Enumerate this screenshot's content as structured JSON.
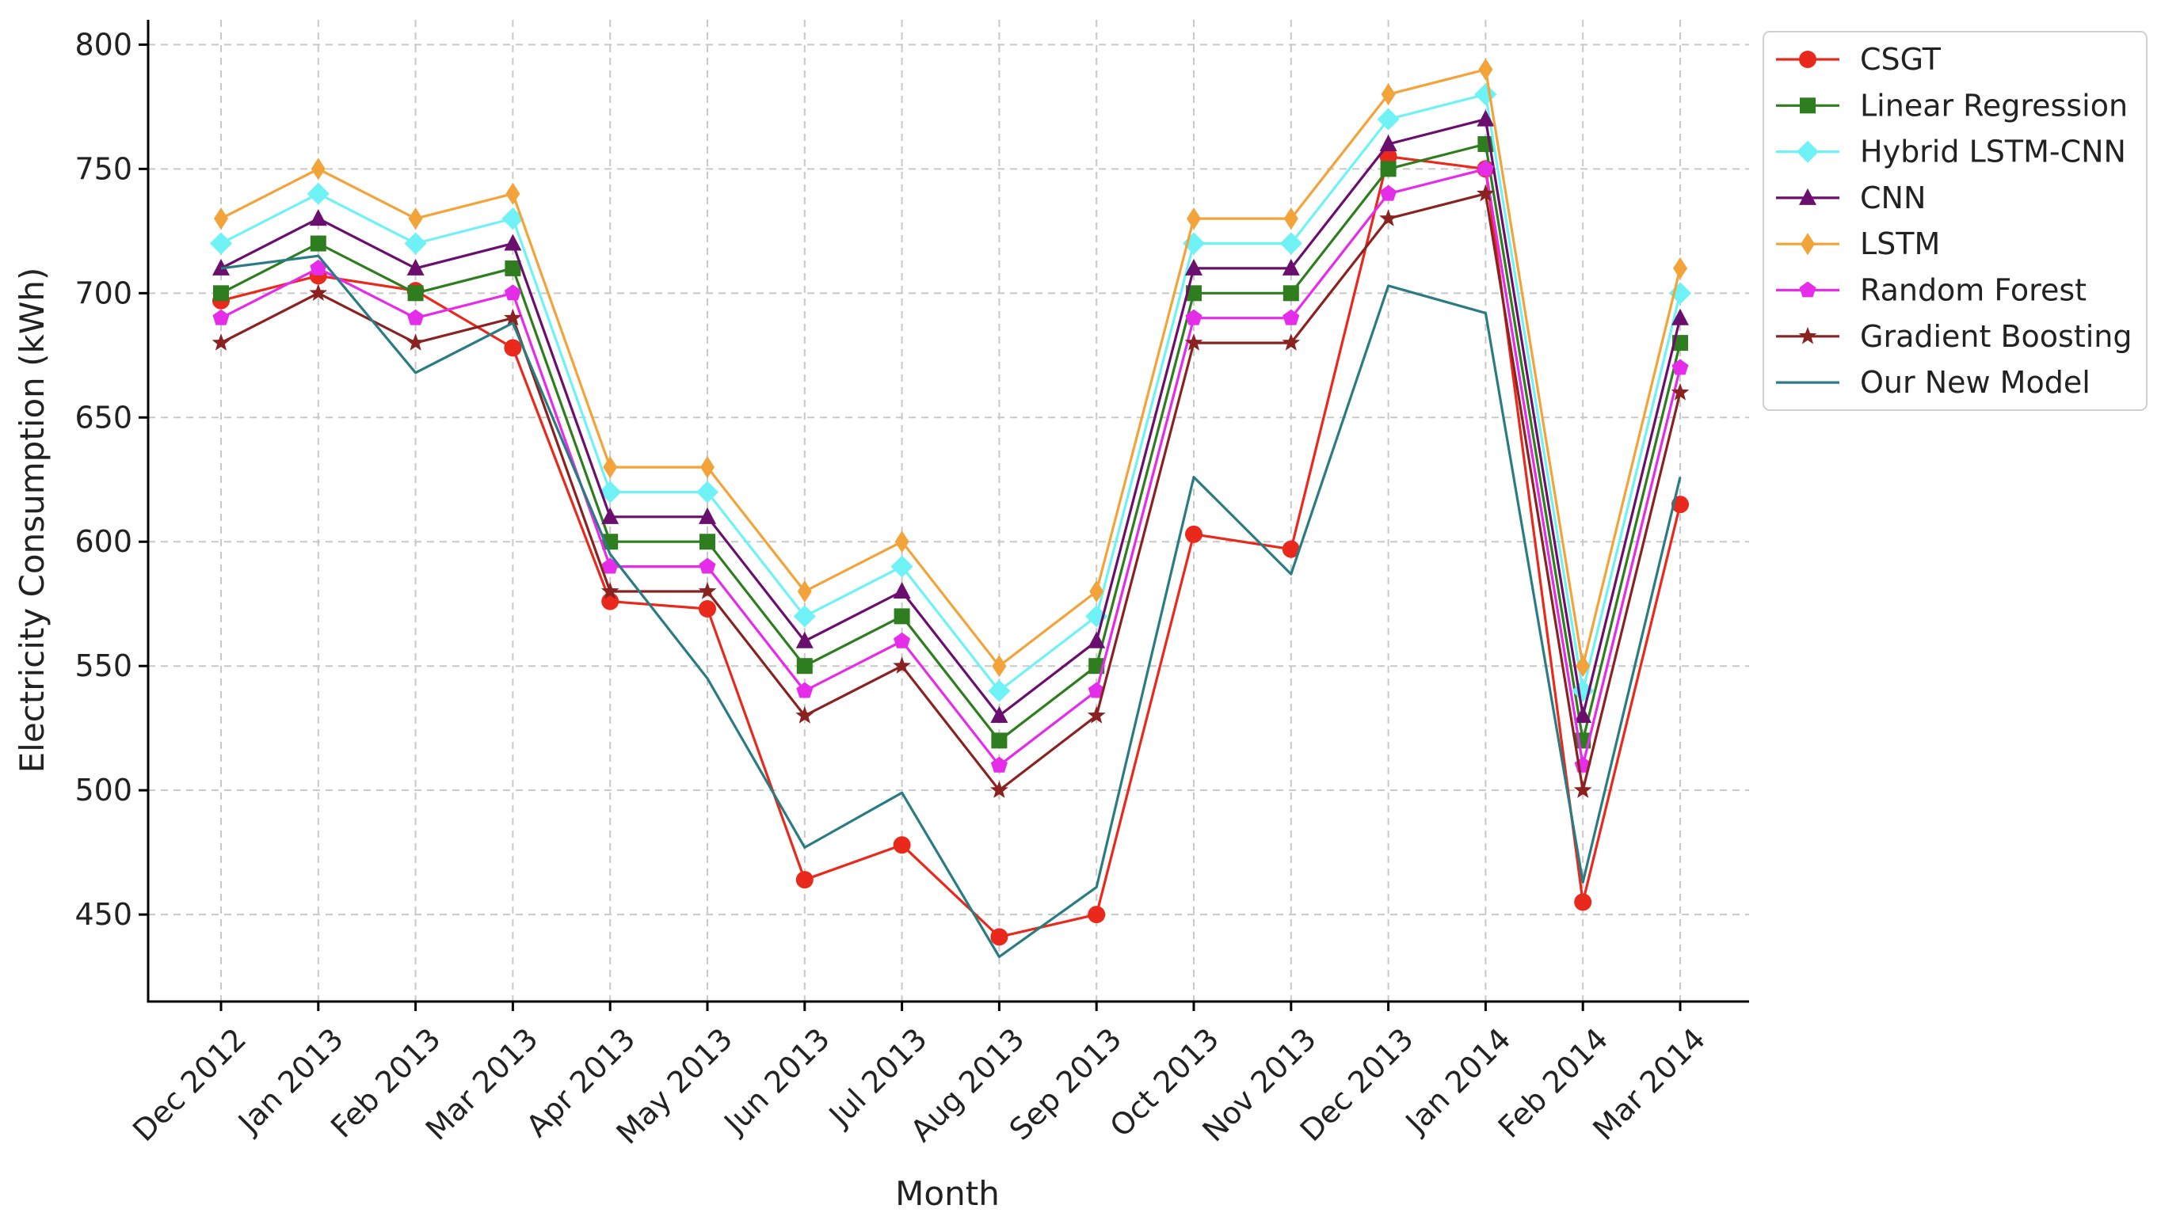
{
  "chart_data": {
    "type": "line",
    "title": "",
    "xlabel": "Month",
    "ylabel": "Electricity Consumption (kWh)",
    "ylim": [
      415,
      810
    ],
    "yticks": [
      450,
      500,
      550,
      600,
      650,
      700,
      750,
      800
    ],
    "grid": true,
    "legend_position": "top-right",
    "categories": [
      "Dec 2012",
      "Jan 2013",
      "Feb 2013",
      "Mar 2013",
      "Apr 2013",
      "May 2013",
      "Jun 2013",
      "Jul 2013",
      "Aug 2013",
      "Sep 2013",
      "Oct 2013",
      "Nov 2013",
      "Dec 2013",
      "Jan 2014",
      "Feb 2014",
      "Mar 2014"
    ],
    "series": [
      {
        "name": "CSGT",
        "color": "#e8291c",
        "marker": "circle",
        "values": [
          697,
          707,
          701,
          678,
          576,
          573,
          464,
          478,
          441,
          450,
          603,
          597,
          755,
          750,
          455,
          615
        ]
      },
      {
        "name": "Linear Regression",
        "color": "#2e7d1f",
        "marker": "square",
        "values": [
          700,
          720,
          700,
          710,
          600,
          600,
          550,
          570,
          520,
          550,
          700,
          700,
          750,
          760,
          520,
          680
        ]
      },
      {
        "name": "Hybrid LSTM-CNN",
        "color": "#6ef2f5",
        "marker": "diamond",
        "values": [
          720,
          740,
          720,
          730,
          620,
          620,
          570,
          590,
          540,
          570,
          720,
          720,
          770,
          780,
          540,
          700
        ]
      },
      {
        "name": "CNN",
        "color": "#6b0f6e",
        "marker": "triangle",
        "values": [
          710,
          730,
          710,
          720,
          610,
          610,
          560,
          580,
          530,
          560,
          710,
          710,
          760,
          770,
          530,
          690
        ]
      },
      {
        "name": "LSTM",
        "color": "#f2a33a",
        "marker": "thin-diamond",
        "values": [
          730,
          750,
          730,
          740,
          630,
          630,
          580,
          600,
          550,
          580,
          730,
          730,
          780,
          790,
          550,
          710
        ]
      },
      {
        "name": "Random Forest",
        "color": "#e52ce8",
        "marker": "pentagon",
        "values": [
          690,
          710,
          690,
          700,
          590,
          590,
          540,
          560,
          510,
          540,
          690,
          690,
          740,
          750,
          510,
          670
        ]
      },
      {
        "name": "Gradient Boosting",
        "color": "#8b2222",
        "marker": "star",
        "values": [
          680,
          700,
          680,
          690,
          580,
          580,
          530,
          550,
          500,
          530,
          680,
          680,
          730,
          740,
          500,
          660
        ]
      },
      {
        "name": "Our New Model",
        "color": "#2b7c82",
        "marker": "none",
        "values": [
          710,
          715,
          668,
          688,
          595,
          545,
          477,
          499,
          433,
          461,
          626,
          587,
          703,
          692,
          463,
          626
        ]
      }
    ]
  }
}
